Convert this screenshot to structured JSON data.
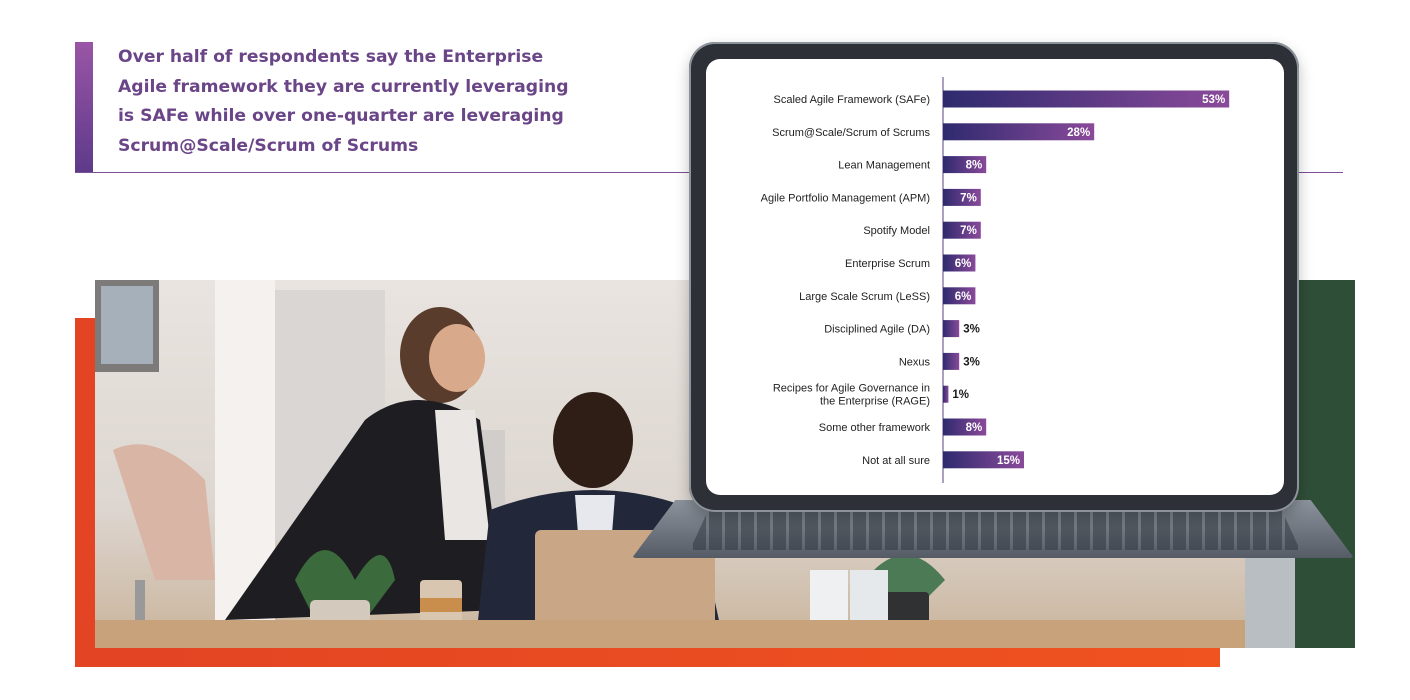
{
  "headline": "Over half of respondents say the Enterprise Agile framework they are currently leveraging is SAFe while over one-quarter are leveraging Scrum@Scale/Scrum of Scrums",
  "colors": {
    "accent_purple": "#6a4587",
    "bar_start": "#2e2a6e",
    "bar_end": "#8a4a9a",
    "orange": "#f0531f"
  },
  "chart_data": {
    "type": "bar",
    "orientation": "horizontal",
    "value_unit": "%",
    "xlim": [
      0,
      100
    ],
    "grid": false,
    "categories": [
      "Scaled Agile Framework (SAFe)",
      "Scrum@Scale/Scrum of Scrums",
      "Lean Management",
      "Agile Portfolio Management (APM)",
      "Spotify Model",
      "Enterprise Scrum",
      "Large Scale Scrum (LeSS)",
      "Disciplined Agile (DA)",
      "Nexus",
      "Recipes for Agile Governance in the Enterprise (RAGE)",
      "Some other framework",
      "Not at all sure"
    ],
    "values": [
      53,
      28,
      8,
      7,
      7,
      6,
      6,
      3,
      3,
      1,
      8,
      15
    ],
    "value_labels": [
      "53%",
      "28%",
      "8%",
      "7%",
      "7%",
      "6%",
      "6%",
      "3%",
      "3%",
      "1%",
      "8%",
      "15%"
    ]
  }
}
